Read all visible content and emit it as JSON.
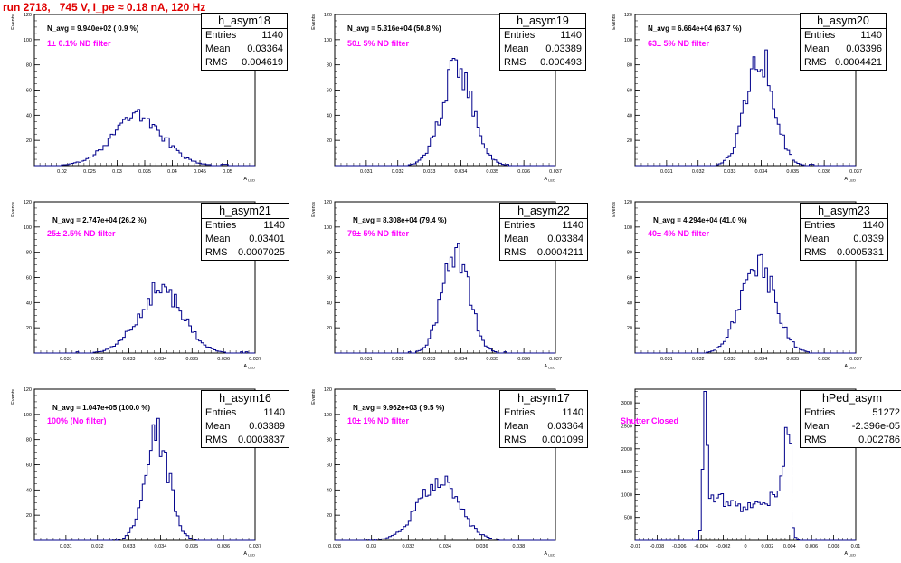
{
  "page_title": "run 2718,   745 V, I_pe ≈ 0.18 nA, 120 Hz",
  "colors": {
    "title": "#e00000",
    "filter_text": "#ff00ff",
    "histogram": "#00008b",
    "frame": "#000000"
  },
  "chart_data": [
    {
      "type": "histogram",
      "name": "h_asym18",
      "entries": "1140",
      "mean": "0.03364",
      "rms": "0.004619",
      "navg": "N_avg = 9.940e+02 ( 0.9 %)",
      "filter": "1± 0.1% ND filter",
      "xlim": [
        0.015,
        0.055
      ],
      "ylim": [
        0,
        120
      ],
      "xticks": [
        0.02,
        0.025,
        0.03,
        0.035,
        0.04,
        0.045,
        0.05
      ],
      "xtick_labels": [
        "0.02",
        "0.025",
        "0.03",
        "0.035",
        "0.04",
        "0.045",
        "0.05"
      ],
      "yticks": [
        20,
        40,
        60,
        80,
        100,
        120
      ],
      "ylabel": "Events",
      "xlabel": "A_LED",
      "peak": 40
    },
    {
      "type": "histogram",
      "name": "h_asym19",
      "entries": "1140",
      "mean": "0.03389",
      "rms": "0.000493",
      "navg": "N_avg = 5.316e+04 (50.8 %)",
      "filter": "50± 5% ND filter",
      "xlim": [
        0.03,
        0.037
      ],
      "ylim": [
        0,
        120
      ],
      "xticks": [
        0.031,
        0.032,
        0.033,
        0.034,
        0.035,
        0.036,
        0.037
      ],
      "xtick_labels": [
        "0.031",
        "0.032",
        "0.033",
        "0.034",
        "0.035",
        "0.036",
        "0.037"
      ],
      "yticks": [
        20,
        40,
        60,
        80,
        100,
        120
      ],
      "ylabel": "Events",
      "xlabel": "A_LED",
      "peak": 80
    },
    {
      "type": "histogram",
      "name": "h_asym20",
      "entries": "1140",
      "mean": "0.03396",
      "rms": "0.0004421",
      "navg": "N_avg = 6.664e+04 (63.7 %)",
      "filter": "63± 5% ND filter",
      "xlim": [
        0.03,
        0.037
      ],
      "ylim": [
        0,
        120
      ],
      "xticks": [
        0.031,
        0.032,
        0.033,
        0.034,
        0.035,
        0.036,
        0.037
      ],
      "xtick_labels": [
        "0.031",
        "0.032",
        "0.033",
        "0.034",
        "0.035",
        "0.036",
        "0.037"
      ],
      "yticks": [
        20,
        40,
        60,
        80,
        100,
        120
      ],
      "ylabel": "Events",
      "xlabel": "A_LED",
      "peak": 90
    },
    {
      "type": "histogram",
      "name": "h_asym21",
      "entries": "1140",
      "mean": "0.03401",
      "rms": "0.0007025",
      "navg": "N_avg = 2.747e+04 (26.2 %)",
      "filter": "25± 2.5% ND filter",
      "xlim": [
        0.03,
        0.037
      ],
      "ylim": [
        0,
        120
      ],
      "xticks": [
        0.031,
        0.032,
        0.033,
        0.034,
        0.035,
        0.036,
        0.037
      ],
      "xtick_labels": [
        "0.031",
        "0.032",
        "0.033",
        "0.034",
        "0.035",
        "0.036",
        "0.037"
      ],
      "yticks": [
        20,
        40,
        60,
        80,
        100,
        120
      ],
      "ylabel": "Events",
      "xlabel": "A_LED",
      "peak": 52
    },
    {
      "type": "histogram",
      "name": "h_asym22",
      "entries": "1140",
      "mean": "0.03384",
      "rms": "0.0004211",
      "navg": "N_avg = 8.308e+04 (79.4 %)",
      "filter": "79± 5% ND filter",
      "xlim": [
        0.03,
        0.037
      ],
      "ylim": [
        0,
        120
      ],
      "xticks": [
        0.031,
        0.032,
        0.033,
        0.034,
        0.035,
        0.036,
        0.037
      ],
      "xtick_labels": [
        "0.031",
        "0.032",
        "0.033",
        "0.034",
        "0.035",
        "0.036",
        "0.037"
      ],
      "yticks": [
        20,
        40,
        60,
        80,
        100,
        120
      ],
      "ylabel": "Events",
      "xlabel": "A_LED",
      "peak": 84
    },
    {
      "type": "histogram",
      "name": "h_asym23",
      "entries": "1140",
      "mean": "0.0339",
      "rms": "0.0005331",
      "navg": "N_avg = 4.294e+04 (41.0 %)",
      "filter": "40± 4% ND filter",
      "xlim": [
        0.03,
        0.037
      ],
      "ylim": [
        0,
        120
      ],
      "xticks": [
        0.031,
        0.032,
        0.033,
        0.034,
        0.035,
        0.036,
        0.037
      ],
      "xtick_labels": [
        "0.031",
        "0.032",
        "0.033",
        "0.034",
        "0.035",
        "0.036",
        "0.037"
      ],
      "yticks": [
        20,
        40,
        60,
        80,
        100,
        120
      ],
      "ylabel": "Events",
      "xlabel": "A_LED",
      "peak": 72
    },
    {
      "type": "histogram",
      "name": "h_asym16",
      "entries": "1140",
      "mean": "0.03389",
      "rms": "0.0003837",
      "navg": "N_avg = 1.047e+05 (100.0 %)",
      "filter": "100% (No filter)",
      "xlim": [
        0.03,
        0.037
      ],
      "ylim": [
        0,
        120
      ],
      "xticks": [
        0.031,
        0.032,
        0.033,
        0.034,
        0.035,
        0.036,
        0.037
      ],
      "xtick_labels": [
        "0.031",
        "0.032",
        "0.033",
        "0.034",
        "0.035",
        "0.036",
        "0.037"
      ],
      "yticks": [
        20,
        40,
        60,
        80,
        100,
        120
      ],
      "ylabel": "Events",
      "xlabel": "A_LED",
      "peak": 86
    },
    {
      "type": "histogram",
      "name": "h_asym17",
      "entries": "1140",
      "mean": "0.03364",
      "rms": "0.001099",
      "navg": "N_avg = 9.962e+03 ( 9.5 %)",
      "filter": "10± 1% ND filter",
      "xlim": [
        0.028,
        0.04
      ],
      "ylim": [
        0,
        120
      ],
      "xticks": [
        0.03,
        0.032,
        0.034,
        0.036,
        0.038
      ],
      "xtick_labels": [
        "0.03",
        "0.032",
        "0.034",
        "0.036",
        "0.038"
      ],
      "extra_tick_label": "0.028",
      "yticks": [
        20,
        40,
        60,
        80,
        100,
        120
      ],
      "ylabel": "Events",
      "xlabel": "A_LED",
      "peak": 48
    },
    {
      "type": "histogram",
      "name": "hPed_asym",
      "entries": "51272",
      "mean": "-2.396e-05",
      "rms": "0.002786",
      "navg": "",
      "filter": "Shutter Closed",
      "xlim": [
        -0.01,
        0.01
      ],
      "ylim": [
        0,
        3300
      ],
      "xticks": [
        -0.008,
        -0.006,
        -0.004,
        -0.002,
        0,
        0.002,
        0.004,
        0.006,
        0.008,
        0.01
      ],
      "xtick_labels": [
        "-0.008",
        "-0.006",
        "-0.004",
        "-0.002",
        "0",
        "0.002",
        "0.004",
        "0.006",
        "0.008",
        "0.01"
      ],
      "extra_tick_label": "-0.01",
      "yticks": [
        500,
        1000,
        1500,
        2000,
        2500,
        3000
      ],
      "ylabel": "",
      "xlabel": "A_LED",
      "peak": 3250
    }
  ]
}
